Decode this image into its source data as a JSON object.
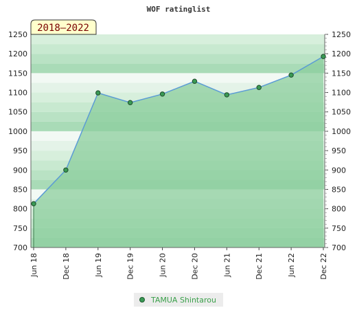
{
  "chart_data": {
    "type": "area",
    "title": "WOF ratinglist",
    "period_label": "2018–2022",
    "xlabel": "",
    "ylabel": "",
    "categories": [
      "Jun 18",
      "Dec 18",
      "Jun 19",
      "Dec 19",
      "Jun 20",
      "Dec 20",
      "Jun 21",
      "Dec 21",
      "Jun 22",
      "Dec 22"
    ],
    "series": [
      {
        "name": "TAMUA Shintarou",
        "values": [
          813,
          900,
          1099,
          1074,
          1096,
          1129,
          1094,
          1113,
          1145,
          1193
        ]
      }
    ],
    "ylim": [
      700,
      1250
    ],
    "yticks": [
      700,
      750,
      800,
      850,
      900,
      950,
      1000,
      1050,
      1100,
      1150,
      1200,
      1250
    ],
    "grid": "horizontal bands",
    "axis_right": true,
    "legend_position": "bottom-center",
    "colors": {
      "line": "#5b9bd5",
      "area": "#8ccd9d",
      "marker": "#3a9a55",
      "band_dark": "#a9dbb7",
      "band_light": "#e4f3e8",
      "period_box": "#ffffcc",
      "period_text": "#7a0000",
      "legend_text": "#3aa04a"
    }
  }
}
